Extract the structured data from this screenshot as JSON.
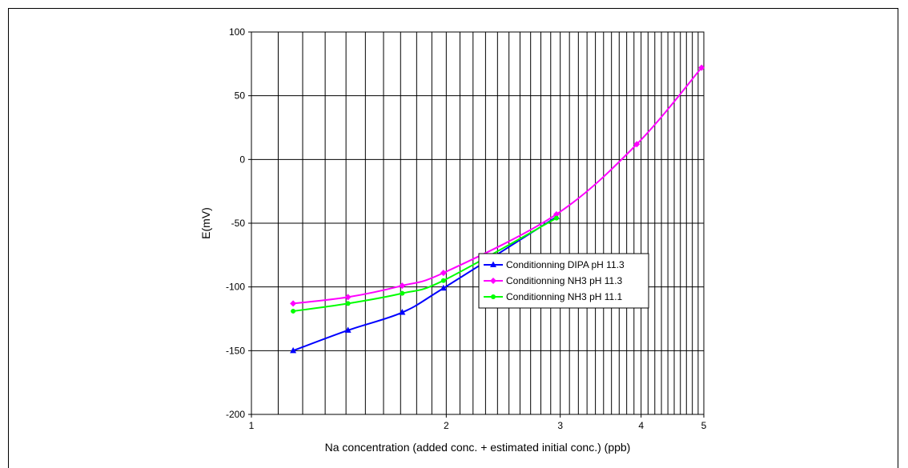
{
  "chart_data": {
    "type": "line",
    "title": "",
    "xlabel": "Na concentration (added conc. + estimated initial conc.) (ppb)",
    "ylabel": "E(mV)",
    "x_scale": "log",
    "xlim": [
      1,
      5
    ],
    "ylim": [
      -200,
      100
    ],
    "x_major_ticks": [
      1,
      2,
      3,
      4,
      5
    ],
    "x_tick_labels": [
      "1",
      "2",
      "3",
      "4",
      "5"
    ],
    "y_ticks": [
      -200,
      -150,
      -100,
      -50,
      0,
      50,
      100
    ],
    "y_tick_labels": [
      "-200",
      "-150",
      "-100",
      "-50",
      "0",
      "50",
      "100"
    ],
    "grid": true,
    "legend_position": "center-right",
    "series": [
      {
        "name": "Conditionning DIPA pH 11.3",
        "color": "#0000ff",
        "marker": "triangle",
        "x": [
          1.16,
          1.41,
          1.71,
          1.98,
          2.96
        ],
        "y": [
          -150,
          -134,
          -120,
          -101,
          -45
        ]
      },
      {
        "name": "Conditionning NH3 pH 11.3",
        "color": "#ff00ff",
        "marker": "diamond",
        "x": [
          1.16,
          1.41,
          1.71,
          1.98,
          2.96,
          3.94,
          4.96
        ],
        "y": [
          -113,
          -108,
          -99,
          -89,
          -43,
          12,
          72
        ]
      },
      {
        "name": "Conditionning NH3 pH 11.1",
        "color": "#00ff00",
        "marker": "circle",
        "x": [
          1.16,
          1.41,
          1.71,
          1.98,
          2.96
        ],
        "y": [
          -119,
          -113,
          -105,
          -95,
          -46
        ]
      }
    ]
  }
}
